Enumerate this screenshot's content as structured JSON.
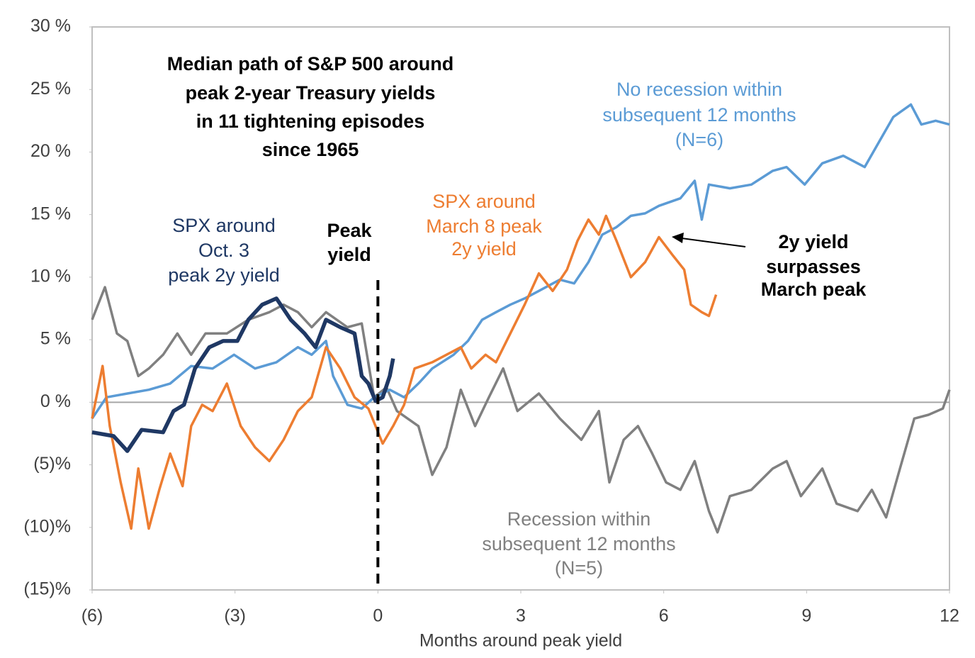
{
  "chart_data": {
    "type": "line",
    "title": [
      "Median path of S&P 500 around",
      "peak 2-year Treasury yields",
      "in 11 tightening episodes",
      "since 1965"
    ],
    "x_label": "Months around peak yield",
    "xlim": [
      -6,
      12
    ],
    "xticks": [
      {
        "value": -6,
        "label": "(6)"
      },
      {
        "value": -3,
        "label": "(3)"
      },
      0,
      3,
      6,
      9,
      12
    ],
    "ylim": [
      -15,
      30
    ],
    "yticks": [
      {
        "value": -15,
        "label": "(15)%"
      },
      {
        "value": -10,
        "label": "(10)%"
      },
      {
        "value": -5,
        "label": "(5)%"
      },
      {
        "value": 0,
        "label": "0 %"
      },
      {
        "value": 5,
        "label": "5 %"
      },
      {
        "value": 10,
        "label": "10 %"
      },
      {
        "value": 15,
        "label": "15 %"
      },
      {
        "value": 20,
        "label": "20 %"
      },
      {
        "value": 25,
        "label": "25 %"
      },
      {
        "value": 30,
        "label": "30 %"
      }
    ],
    "baseline": 0,
    "vline": {
      "x": 0,
      "label": [
        "Peak",
        "yield"
      ]
    },
    "annotation": [
      "2y yield",
      "surpasses",
      "March peak"
    ],
    "series": [
      {
        "label": [
          "Recession within",
          "subsequent 12 months",
          "(N=5)"
        ],
        "color": "#808080",
        "width": 3.5,
        "x": [
          -6,
          -5.73,
          -5.48,
          -5.26,
          -5.03,
          -4.81,
          -4.51,
          -4.21,
          -3.92,
          -3.62,
          -3.17,
          -2.72,
          -2.28,
          -1.98,
          -1.68,
          -1.39,
          -1.09,
          -0.64,
          -0.34,
          -0.08,
          0.18,
          0.4,
          0.85,
          1.14,
          1.44,
          1.74,
          2.04,
          2.33,
          2.63,
          2.93,
          3.38,
          3.82,
          4.27,
          4.64,
          4.86,
          5.16,
          5.46,
          5.76,
          6.05,
          6.35,
          6.65,
          6.95,
          7.13,
          7.39,
          7.84,
          8.29,
          8.58,
          8.88,
          9.33,
          9.63,
          10.07,
          10.37,
          10.67,
          10.96,
          11.26,
          11.56,
          11.86,
          12
        ],
        "values": [
          6.6,
          9.2,
          5.5,
          4.9,
          2.1,
          2.7,
          3.8,
          5.5,
          3.8,
          5.5,
          5.5,
          6.6,
          7.2,
          7.8,
          7.2,
          6.0,
          7.2,
          6.0,
          6.3,
          0.4,
          1.2,
          -0.7,
          -1.9,
          -5.8,
          -3.6,
          1.0,
          -1.9,
          0.4,
          2.7,
          -0.7,
          0.7,
          -1.3,
          -3.0,
          -0.7,
          -6.4,
          -3.0,
          -1.9,
          -4.1,
          -6.4,
          -7.0,
          -4.7,
          -8.7,
          -10.4,
          -7.5,
          -7.0,
          -5.3,
          -4.7,
          -7.5,
          -5.3,
          -8.1,
          -8.7,
          -7.0,
          -9.2,
          -5.3,
          -1.3,
          -1.0,
          -0.5,
          1.0
        ]
      },
      {
        "label": [
          "No recession within",
          "subsequent 12 months",
          "(N=6)"
        ],
        "color": "#5b9bd5",
        "width": 3.5,
        "x": [
          -6,
          -5.7,
          -5.26,
          -4.81,
          -4.36,
          -3.92,
          -3.47,
          -3.02,
          -2.58,
          -2.13,
          -1.68,
          -1.39,
          -1.09,
          -0.94,
          -0.64,
          -0.34,
          -0.08,
          0.25,
          0.55,
          0.85,
          1.14,
          1.59,
          1.89,
          2.19,
          2.48,
          2.78,
          3.08,
          3.38,
          3.82,
          4.12,
          4.42,
          4.71,
          5.01,
          5.31,
          5.61,
          5.9,
          6.35,
          6.65,
          6.8,
          6.95,
          7.39,
          7.84,
          8.29,
          8.58,
          8.96,
          9.33,
          9.77,
          10.22,
          10.52,
          10.82,
          11.19,
          11.41,
          11.71,
          12
        ],
        "values": [
          -1.3,
          0.4,
          0.7,
          1.0,
          1.5,
          2.9,
          2.7,
          3.8,
          2.7,
          3.2,
          4.4,
          3.8,
          4.9,
          2.1,
          -0.2,
          -0.5,
          0.4,
          1.0,
          0.4,
          1.5,
          2.7,
          3.8,
          4.9,
          6.6,
          7.2,
          7.8,
          8.3,
          8.9,
          9.8,
          9.5,
          11.2,
          13.4,
          14.0,
          14.9,
          15.1,
          15.7,
          16.3,
          17.7,
          14.6,
          17.4,
          17.1,
          17.4,
          18.5,
          18.8,
          17.4,
          19.1,
          19.7,
          18.8,
          20.8,
          22.8,
          23.8,
          22.2,
          22.5,
          22.2
        ]
      },
      {
        "label": [
          "SPX around",
          "March 8 peak",
          "2y yield"
        ],
        "color": "#ed7d31",
        "width": 3.5,
        "x": [
          -6,
          -5.78,
          -5.63,
          -5.4,
          -5.18,
          -5.03,
          -4.81,
          -4.59,
          -4.36,
          -4.1,
          -3.92,
          -3.69,
          -3.47,
          -3.17,
          -2.88,
          -2.58,
          -2.28,
          -1.98,
          -1.68,
          -1.39,
          -1.09,
          -0.79,
          -0.49,
          -0.2,
          0.1,
          0.32,
          0.55,
          0.77,
          1.14,
          1.44,
          1.74,
          1.96,
          2.26,
          2.48,
          2.78,
          3.08,
          3.38,
          3.67,
          3.97,
          4.19,
          4.42,
          4.64,
          4.79,
          5.01,
          5.31,
          5.61,
          5.9,
          6.2,
          6.43,
          6.57,
          6.8,
          6.95,
          7.1
        ],
        "values": [
          -1.3,
          2.9,
          -1.9,
          -6.4,
          -10.1,
          -5.3,
          -10.1,
          -7.0,
          -4.1,
          -6.7,
          -1.9,
          -0.2,
          -0.7,
          1.5,
          -1.9,
          -3.6,
          -4.7,
          -3.0,
          -0.7,
          0.4,
          4.4,
          2.7,
          0.4,
          -0.5,
          -3.3,
          -1.9,
          -0.2,
          2.7,
          3.2,
          3.8,
          4.4,
          2.7,
          3.8,
          3.2,
          5.5,
          7.8,
          10.3,
          8.9,
          10.6,
          12.9,
          14.6,
          13.4,
          14.9,
          12.9,
          10.0,
          11.2,
          13.2,
          11.7,
          10.6,
          7.8,
          7.2,
          6.9,
          8.6
        ]
      },
      {
        "label": [
          "SPX around",
          "Oct. 3",
          "peak 2y yield"
        ],
        "color": "#1f3864",
        "width": 5.5,
        "x": [
          -6,
          -5.55,
          -5.26,
          -4.96,
          -4.51,
          -4.29,
          -4.07,
          -3.84,
          -3.54,
          -3.25,
          -2.95,
          -2.72,
          -2.43,
          -2.13,
          -1.83,
          -1.54,
          -1.31,
          -1.09,
          -0.79,
          -0.49,
          -0.34,
          -0.2,
          -0.05,
          0.1,
          0.25,
          0.32
        ],
        "values": [
          -2.4,
          -2.7,
          -3.9,
          -2.2,
          -2.4,
          -0.7,
          -0.2,
          2.7,
          4.4,
          4.9,
          4.9,
          6.6,
          7.8,
          8.3,
          6.6,
          5.5,
          4.4,
          6.6,
          6.0,
          5.5,
          2.1,
          1.5,
          0.1,
          0.4,
          2.1,
          3.5
        ]
      }
    ]
  }
}
